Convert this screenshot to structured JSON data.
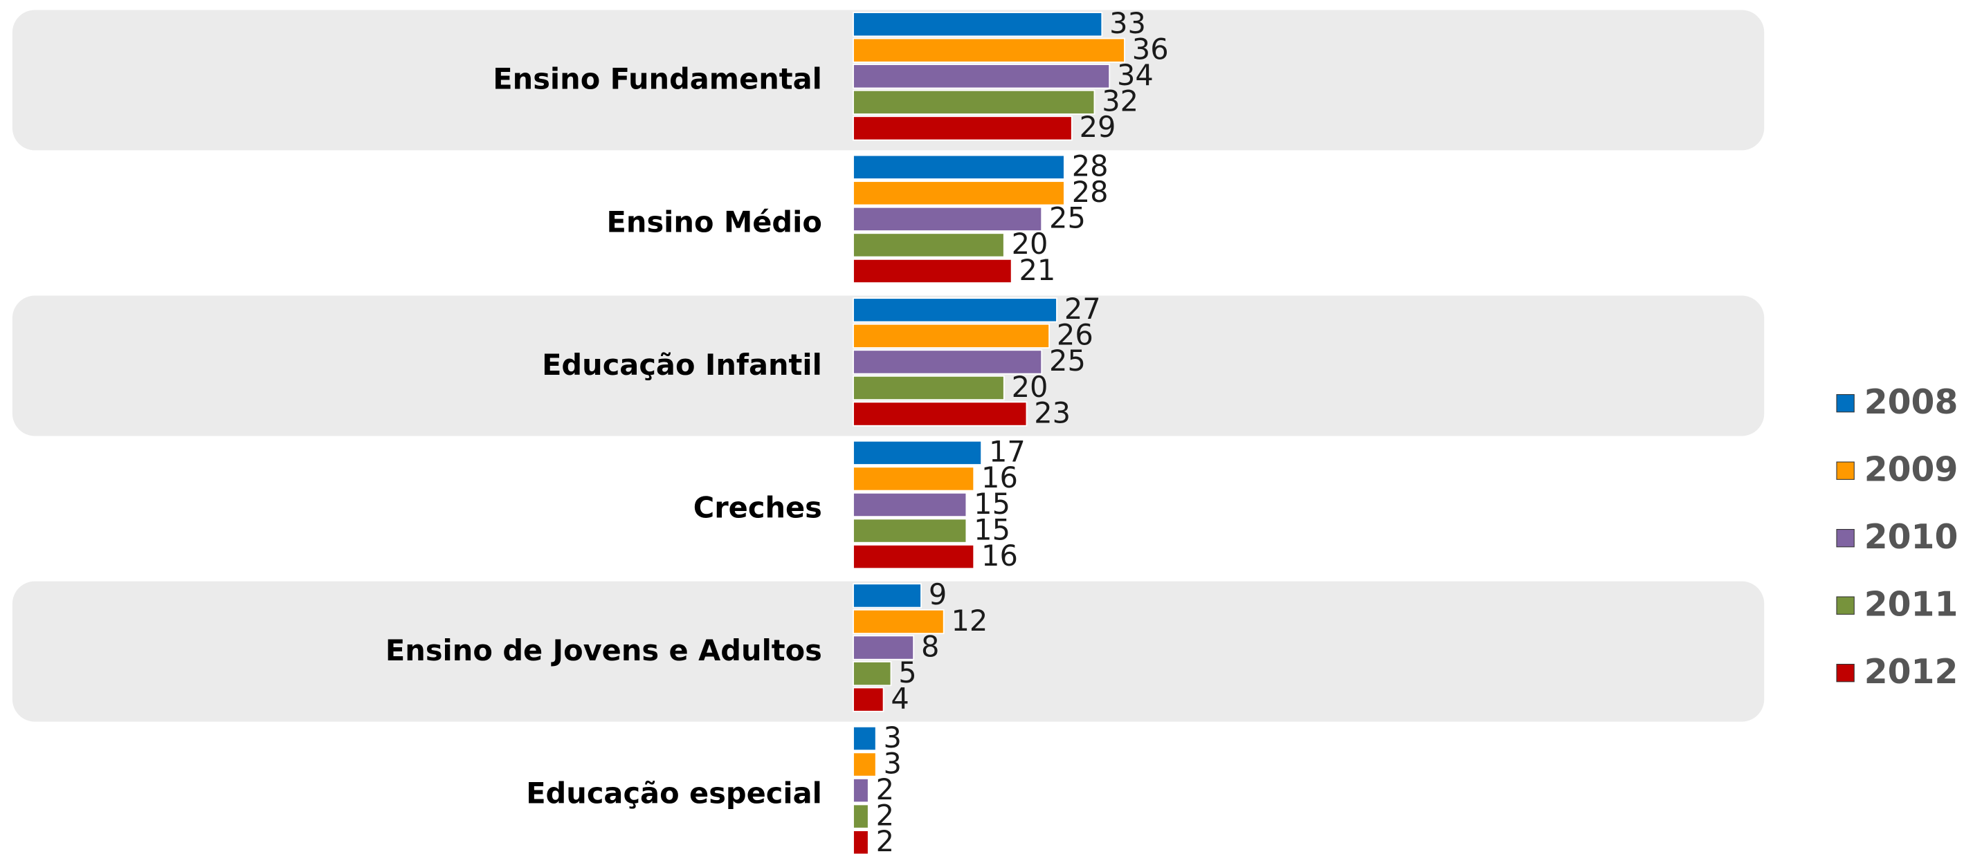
{
  "chart_data": {
    "type": "bar",
    "orientation": "horizontal",
    "categories": [
      "Ensino Fundamental",
      "Ensino Médio",
      "Educação Infantil",
      "Creches",
      "Ensino de Jovens e Adultos",
      "Educação especial"
    ],
    "series": [
      {
        "name": "2008",
        "color": "#0070c0",
        "values": [
          33,
          28,
          27,
          17,
          9,
          3
        ]
      },
      {
        "name": "2009",
        "color": "#ff9900",
        "values": [
          36,
          28,
          26,
          16,
          12,
          3
        ]
      },
      {
        "name": "2010",
        "color": "#8064a2",
        "values": [
          34,
          25,
          25,
          15,
          8,
          2
        ]
      },
      {
        "name": "2011",
        "color": "#77933c",
        "values": [
          32,
          20,
          20,
          15,
          5,
          2
        ]
      },
      {
        "name": "2012",
        "color": "#c00000",
        "values": [
          29,
          21,
          23,
          16,
          4,
          2
        ]
      }
    ],
    "legend": "right"
  }
}
